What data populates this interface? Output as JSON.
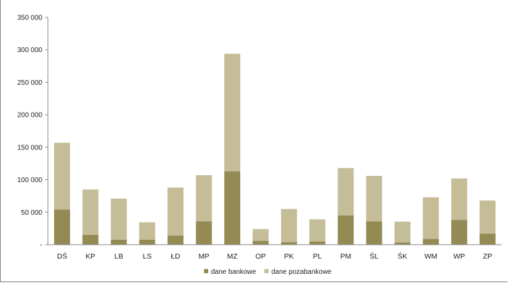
{
  "chart_data": {
    "type": "bar",
    "stacked": true,
    "categories": [
      "DŚ",
      "KP",
      "LB",
      "LS",
      "ŁD",
      "MP",
      "MZ",
      "OP",
      "PK",
      "PL",
      "PM",
      "ŚL",
      "ŚK",
      "WM",
      "WP",
      "ZP"
    ],
    "series": [
      {
        "name": "dane bankowe",
        "color": "#948a54",
        "values": [
          54000,
          15000,
          7500,
          7500,
          14000,
          36000,
          113000,
          6000,
          4000,
          5000,
          45000,
          36000,
          3500,
          9000,
          38000,
          17000
        ]
      },
      {
        "name": "dane pozabankowe",
        "color": "#c4bd97",
        "values": [
          103000,
          70000,
          63500,
          27000,
          74000,
          71000,
          181000,
          18000,
          51000,
          34000,
          73000,
          70000,
          32000,
          64000,
          64000,
          51000
        ]
      }
    ],
    "y_ticks": [
      "-",
      "50 000",
      "100 000",
      "150 000",
      "200 000",
      "250 000",
      "300 000",
      "350 000"
    ],
    "ylim": [
      0,
      350000
    ],
    "y_step": 50000,
    "grid": false,
    "legend_position": "bottom"
  }
}
